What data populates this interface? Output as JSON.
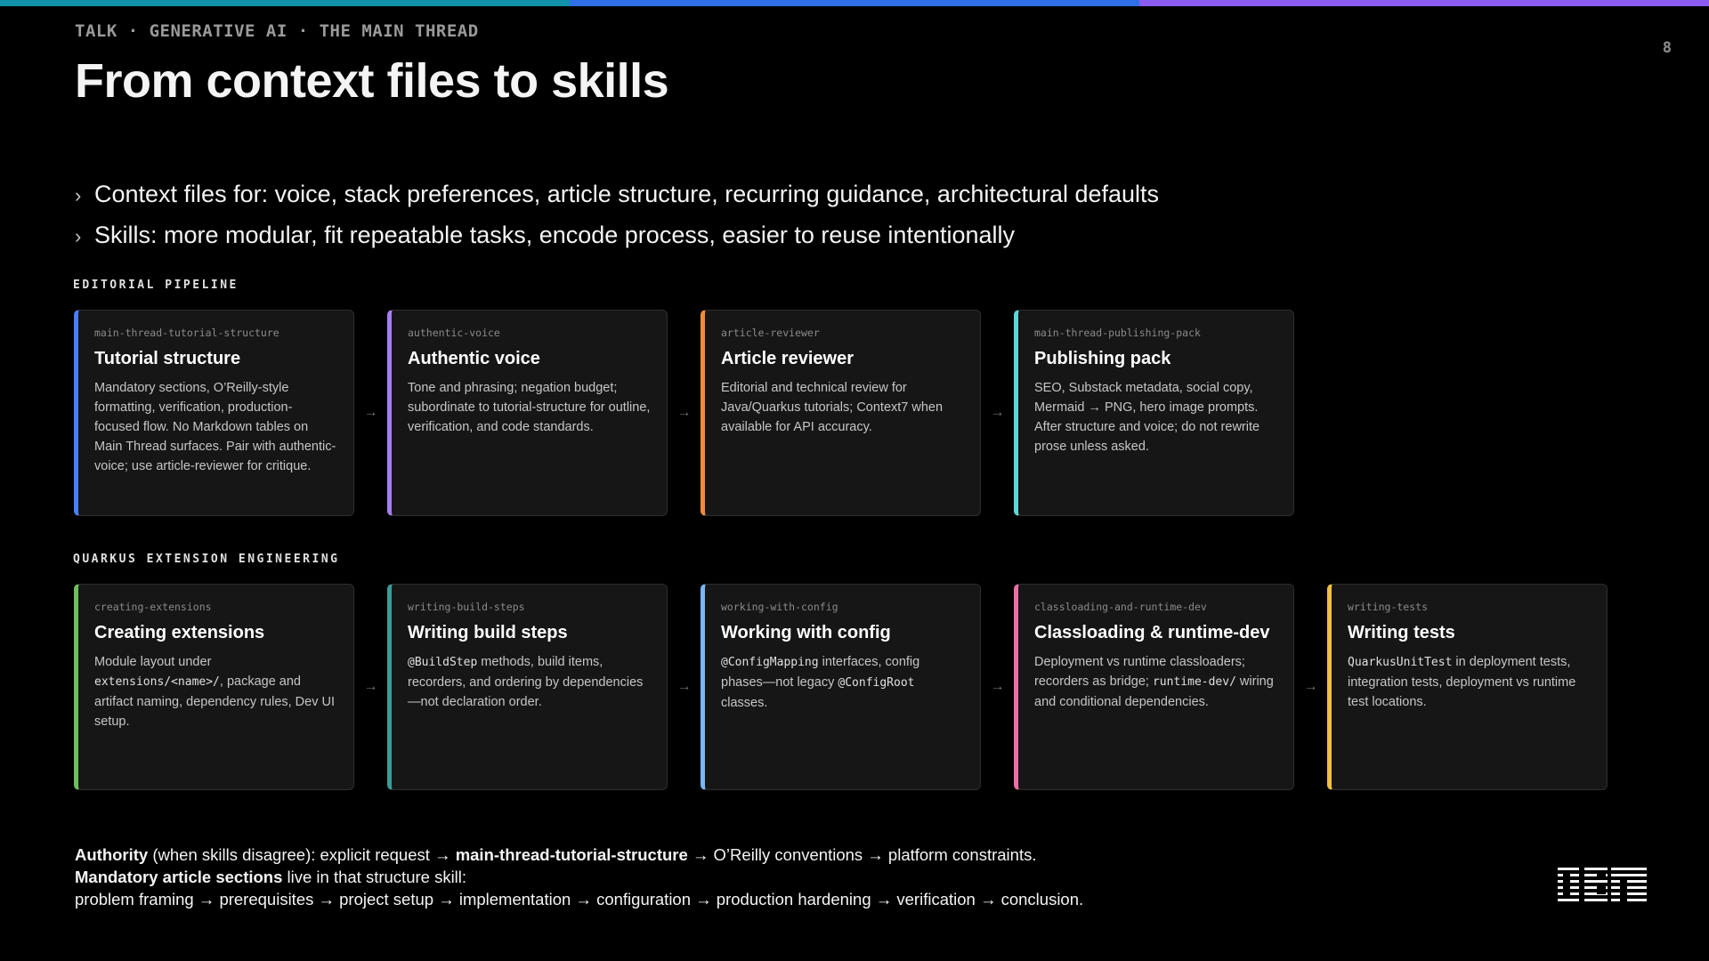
{
  "colors": {
    "topbar": [
      "#1192a8",
      "#2f6fe8",
      "#8a5cf0"
    ],
    "background": "#000000",
    "card_bg": "#161616"
  },
  "header": {
    "kicker": "TALK · GENERATIVE AI · THE MAIN THREAD",
    "title": "From context files to skills",
    "page_number": "8"
  },
  "bullets": [
    {
      "icon": "chevron-right-icon",
      "glyph": "›",
      "text": "Context files for: voice, stack preferences, article structure, recurring guidance, architectural defaults"
    },
    {
      "icon": "chevron-right-icon",
      "glyph": "›",
      "text": "Skills: more modular, fit repeatable tasks, encode process, easier to reuse intentionally"
    }
  ],
  "arrow_glyph": "→",
  "sections": [
    {
      "label": "EDITORIAL PIPELINE",
      "cards": [
        {
          "slug": "main-thread-tutorial-structure",
          "title": "Tutorial structure",
          "accent": "#4a7dff",
          "body": [
            {
              "t": "Mandatory sections, O’Reilly-style formatting, verification, production-focused flow. No Markdown tables on Main Thread surfaces. Pair with authentic-voice; use article-reviewer for critique."
            }
          ]
        },
        {
          "slug": "authentic-voice",
          "title": "Authentic voice",
          "accent": "#a47ff0",
          "body": [
            {
              "t": "Tone and phrasing; negation budget; subordinate to tutorial-structure for outline, verification, and code standards."
            }
          ]
        },
        {
          "slug": "article-reviewer",
          "title": "Article reviewer",
          "accent": "#f08a3c",
          "body": [
            {
              "t": "Editorial and technical review for Java/Quarkus tutorials; Context7 when available for API accuracy."
            }
          ]
        },
        {
          "slug": "main-thread-publishing-pack",
          "title": "Publishing pack",
          "accent": "#5fd6d6",
          "body": [
            {
              "t": "SEO, Substack metadata, social copy, Mermaid → PNG, hero image prompts. After structure and voice; do not rewrite prose unless asked."
            }
          ]
        }
      ]
    },
    {
      "label": "QUARKUS EXTENSION ENGINEERING",
      "cards": [
        {
          "slug": "creating-extensions",
          "title": "Creating extensions",
          "accent": "#6cbf5c",
          "body": [
            {
              "t": "Module layout under "
            },
            {
              "t": "extensions/<name>/",
              "code": true
            },
            {
              "t": ", package and artifact naming, dependency rules, Dev UI setup."
            }
          ]
        },
        {
          "slug": "writing-build-steps",
          "title": "Writing build steps",
          "accent": "#3a9c98",
          "body": [
            {
              "t": "@BuildStep",
              "code": true
            },
            {
              "t": " methods, build items, recorders, and ordering by dependencies—not declaration order."
            }
          ]
        },
        {
          "slug": "working-with-config",
          "title": "Working with config",
          "accent": "#7ab6f5",
          "body": [
            {
              "t": "@ConfigMapping",
              "code": true
            },
            {
              "t": " interfaces, config phases—not legacy "
            },
            {
              "t": "@ConfigRoot",
              "code": true
            },
            {
              "t": " classes."
            }
          ]
        },
        {
          "slug": "classloading-and-runtime-dev",
          "title": "Classloading & runtime-dev",
          "accent": "#ec6fa6",
          "body": [
            {
              "t": "Deployment vs runtime classloaders; recorders as bridge; "
            },
            {
              "t": "runtime-dev/",
              "code": true
            },
            {
              "t": " wiring and conditional dependencies."
            }
          ]
        },
        {
          "slug": "writing-tests",
          "title": "Writing tests",
          "accent": "#f1c040",
          "body": [
            {
              "t": "QuarkusUnitTest",
              "code": true
            },
            {
              "t": " in deployment tests, integration tests, deployment vs runtime test locations."
            }
          ]
        }
      ]
    }
  ],
  "footer": {
    "lines": [
      [
        {
          "t": "Authority",
          "b": true
        },
        {
          "t": " (when skills disagree): explicit request → "
        },
        {
          "t": "main-thread-tutorial-structure",
          "b": true
        },
        {
          "t": " → O’Reilly conventions → platform constraints."
        }
      ],
      [
        {
          "t": "Mandatory article sections",
          "b": true
        },
        {
          "t": " live in that structure skill:"
        }
      ],
      [
        {
          "t": "problem framing → prerequisites → project setup → implementation → configuration → production hardening → verification → conclusion."
        }
      ]
    ]
  },
  "logo": {
    "text": "IBM"
  }
}
